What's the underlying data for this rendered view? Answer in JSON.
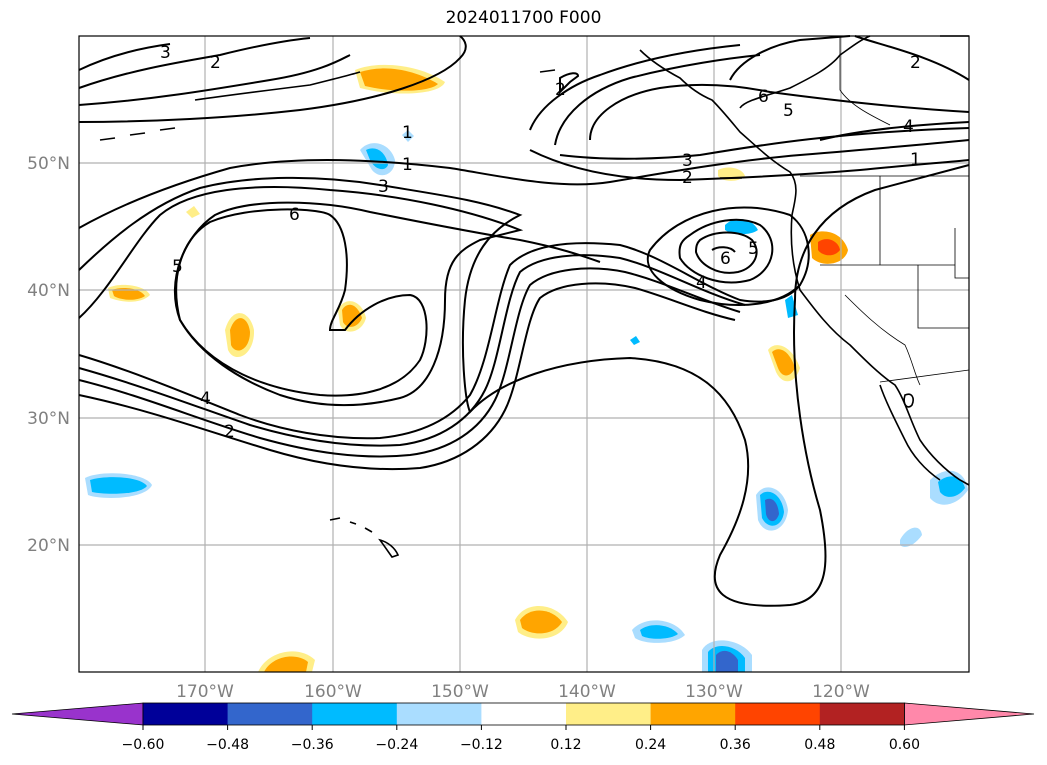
{
  "title": "2024011700 F000",
  "map": {
    "lat_labels": [
      "50°N",
      "40°N",
      "30°N",
      "20°N"
    ],
    "lon_labels": [
      "170°W",
      "160°W",
      "150°W",
      "140°W",
      "130°W",
      "120°W"
    ],
    "contour_labels": [
      "3",
      "2",
      "2",
      "2",
      "6",
      "5",
      "4",
      "1",
      "1",
      "3",
      "2",
      "6",
      "5",
      "6",
      "4",
      "5",
      "4",
      "2",
      "1",
      "3"
    ]
  },
  "colorbar": {
    "labels": [
      "−0.60",
      "−0.48",
      "−0.36",
      "−0.24",
      "−0.12",
      "0.12",
      "0.24",
      "0.36",
      "0.48",
      "0.60"
    ],
    "colors": [
      "#9933cc",
      "#000099",
      "#3366cc",
      "#00bbff",
      "#aaddff",
      "#ffffff",
      "#ffee88",
      "#ffa500",
      "#ff4400",
      "#b22222",
      "#ff88aa"
    ]
  }
}
